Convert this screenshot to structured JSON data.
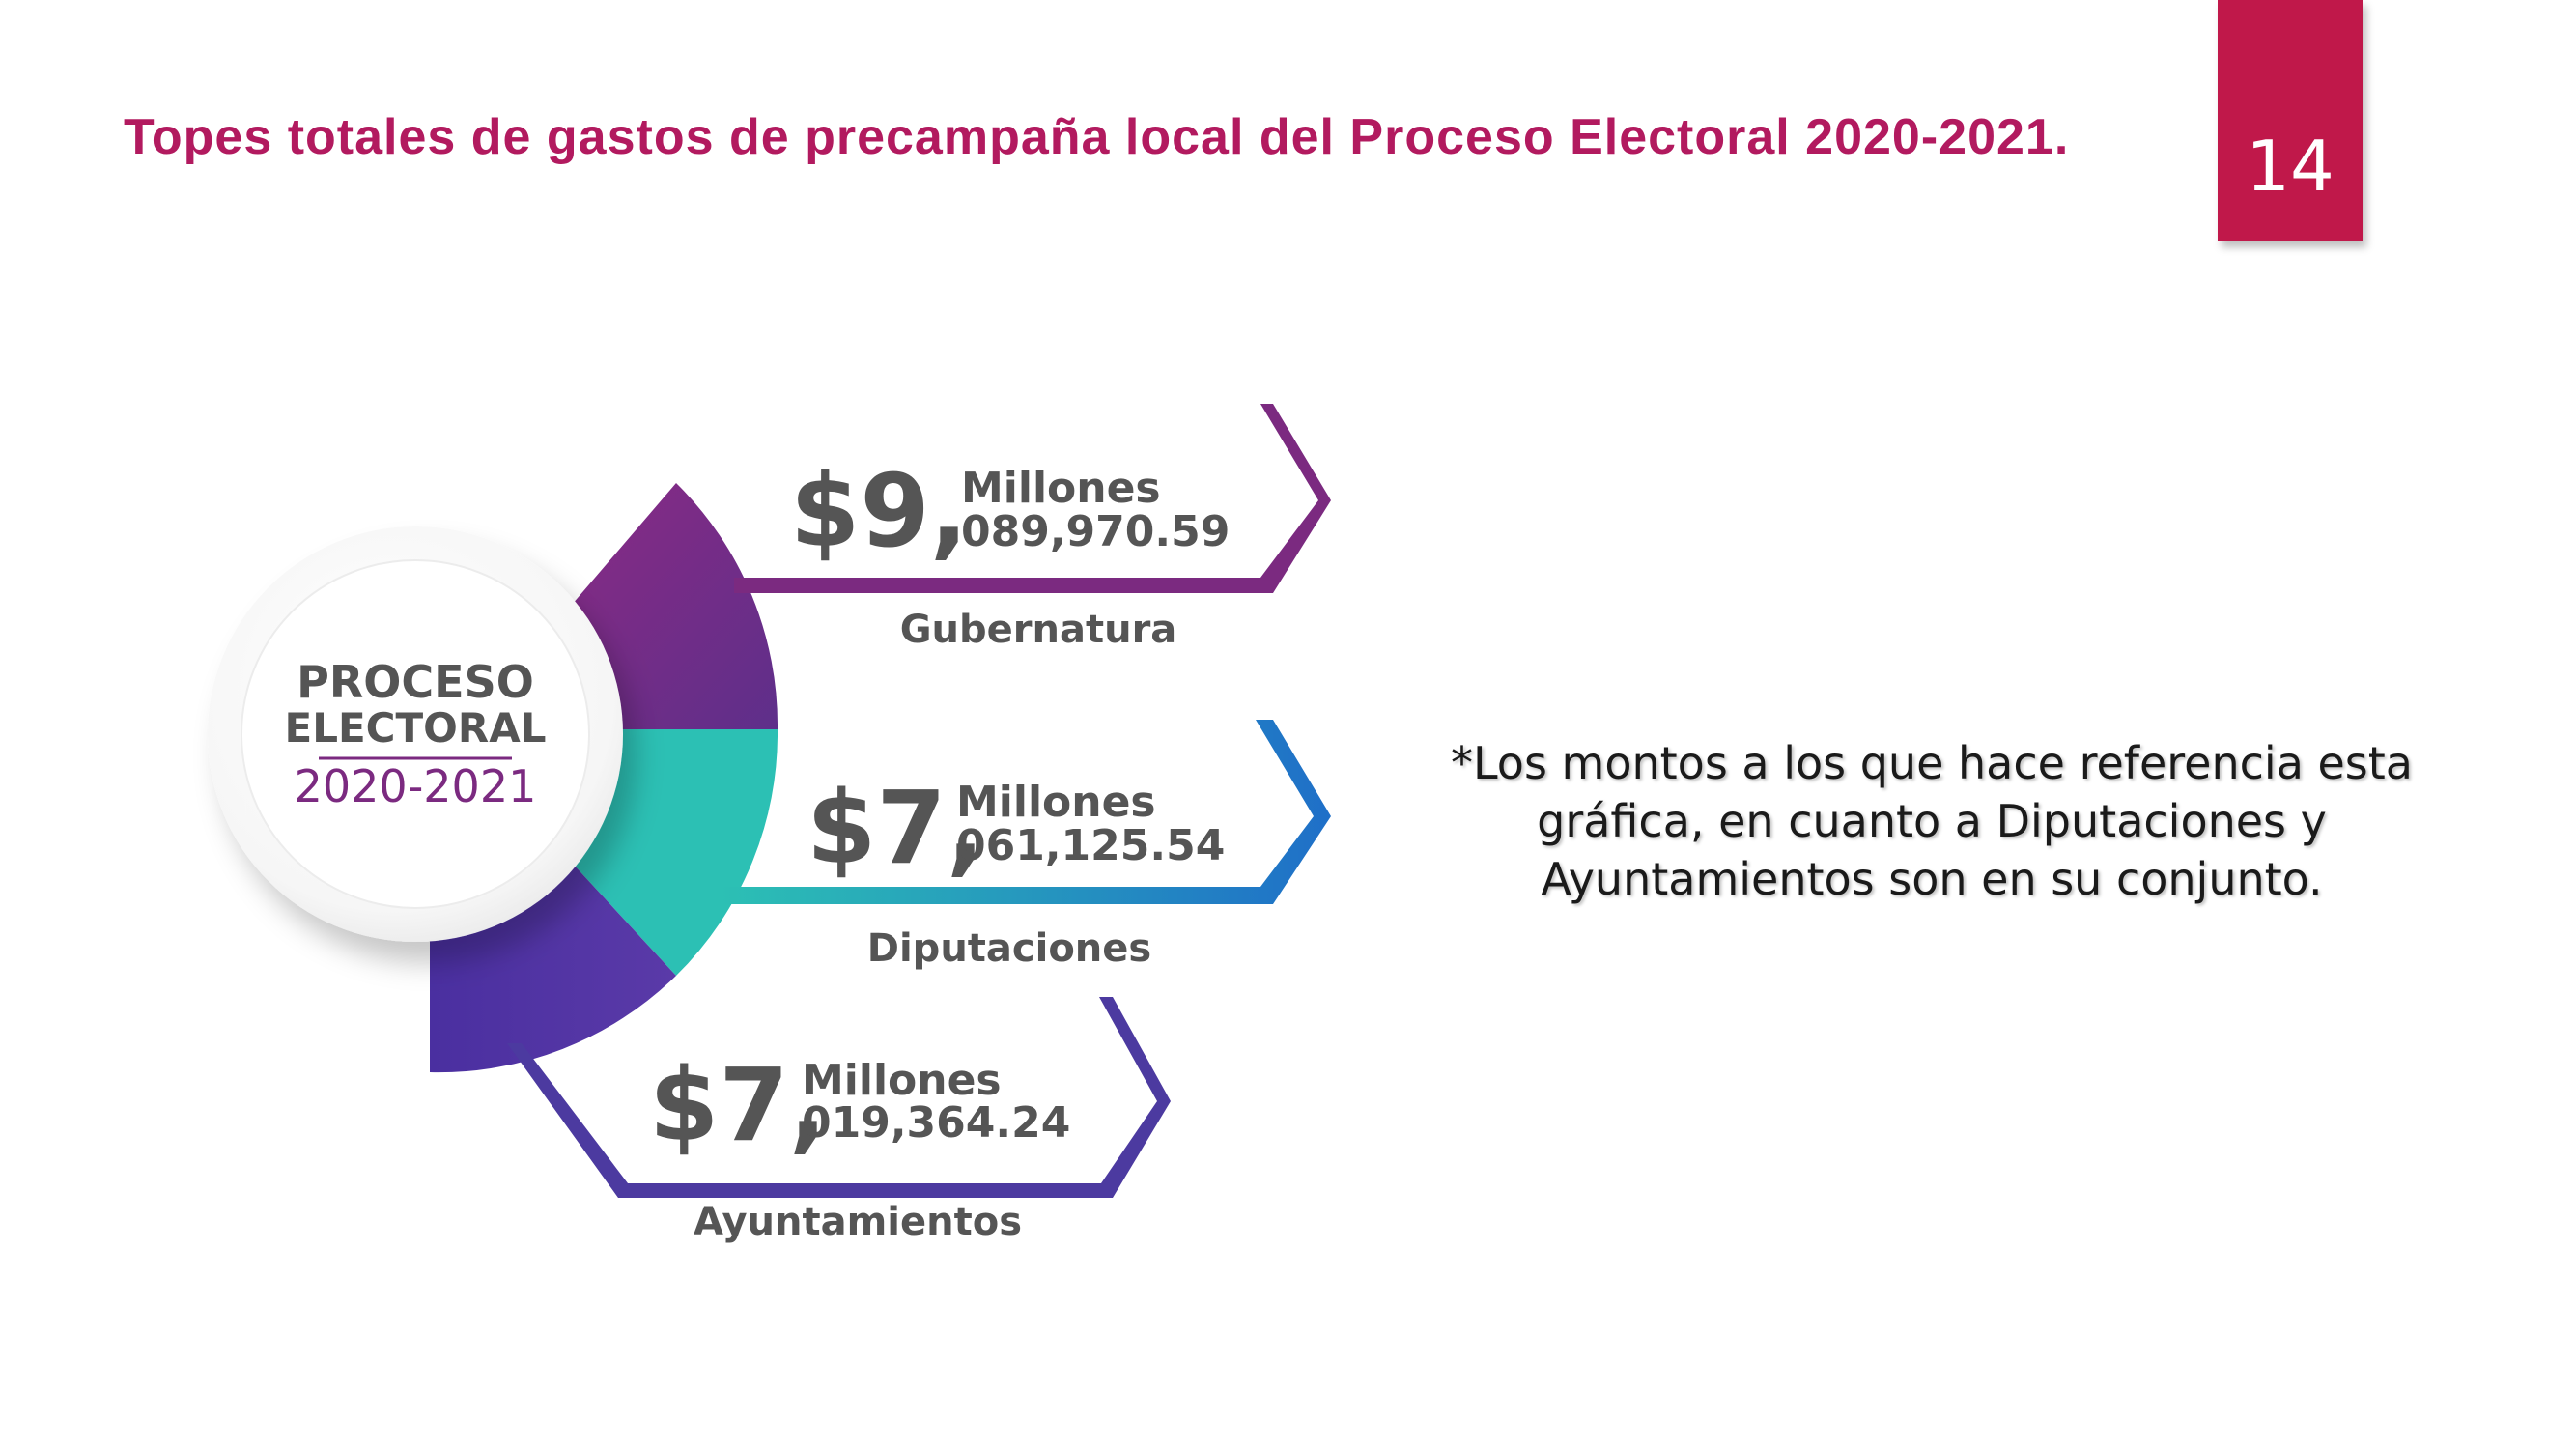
{
  "slide": {
    "title": "Topes totales de gastos de precampaña local del Proceso Electoral 2020-2021.",
    "page_number": "14",
    "note": "*Los montos a los que hace referencia esta gráfica, en cuanto a Diputaciones y Ayuntamientos son en su conjunto."
  },
  "colors": {
    "title": "#b21a5f",
    "badge": "#c0184a",
    "purple": "#7b2a80",
    "teal": "#2cc0b4",
    "blue": "#1f78c8",
    "indigo": "#4c3aa0",
    "gray_text": "#555555"
  },
  "infographic": {
    "center": {
      "line1": "PROCESO",
      "line2": "ELECTORAL",
      "years": "2020-2021"
    },
    "items": [
      {
        "big": "$9,",
        "unit": "Millones",
        "rest": "089,970.59",
        "label": "Gubernatura"
      },
      {
        "big": "$7,",
        "unit": "Millones",
        "rest": "061,125.54",
        "label": "Diputaciones"
      },
      {
        "big": "$7,",
        "unit": "Millones",
        "rest": "019,364.24",
        "label": "Ayuntamientos"
      }
    ]
  }
}
